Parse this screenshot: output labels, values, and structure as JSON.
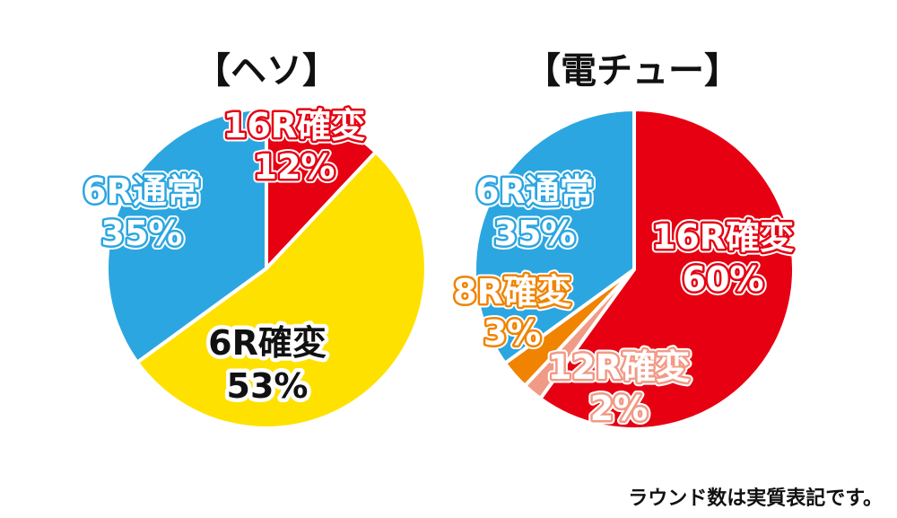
{
  "chart_data": [
    {
      "type": "pie",
      "title": "【ヘソ】",
      "slices": [
        {
          "label": "16R確変",
          "value": 12,
          "value_label": "12%",
          "color": "#e60012"
        },
        {
          "label": "6R確変",
          "value": 53,
          "value_label": "53%",
          "color": "#ffe100"
        },
        {
          "label": "6R通常",
          "value": 35,
          "value_label": "35%",
          "color": "#2ca6e0"
        }
      ]
    },
    {
      "type": "pie",
      "title": "【電チュー】",
      "slices": [
        {
          "label": "16R確変",
          "value": 60,
          "value_label": "60%",
          "color": "#e60012"
        },
        {
          "label": "12R確変",
          "value": 2,
          "value_label": "2%",
          "color": "#f19a85"
        },
        {
          "label": "8R確変",
          "value": 3,
          "value_label": "3%",
          "color": "#f08300"
        },
        {
          "label": "6R通常",
          "value": 35,
          "value_label": "35%",
          "color": "#2ca6e0"
        }
      ]
    }
  ],
  "footnote": "ラウンド数は実質表記です。"
}
